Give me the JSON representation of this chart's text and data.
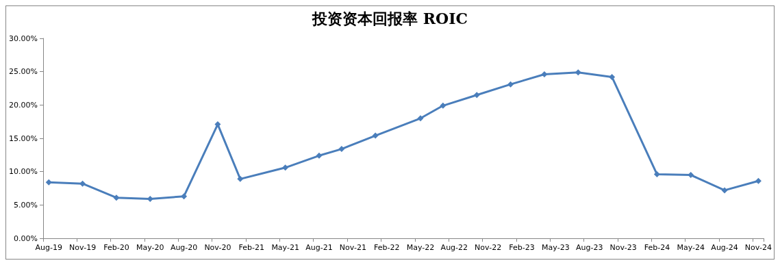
{
  "chart_data": {
    "type": "line",
    "title": "投资资本回报率 ROIC",
    "categories": [
      "Aug-19",
      null,
      null,
      "Nov-19",
      null,
      null,
      "Feb-20",
      null,
      null,
      "May-20",
      null,
      null,
      "Aug-20",
      null,
      null,
      "Nov-20",
      null,
      null,
      "Feb-21",
      null,
      null,
      "May-21",
      null,
      null,
      "Aug-21",
      null,
      null,
      "Nov-21",
      null,
      null,
      "Feb-22",
      null,
      null,
      "May-22",
      null,
      null,
      "Aug-22",
      null,
      null,
      "Nov-22",
      null,
      null,
      "Feb-23",
      null,
      null,
      "May-23",
      null,
      null,
      "Aug-23",
      null,
      null,
      "Nov-23",
      null,
      null,
      "Feb-24",
      null,
      null,
      "May-24",
      null,
      null,
      "Aug-24",
      null,
      null,
      "Nov-24"
    ],
    "series": [
      {
        "color": "#4a7ebb",
        "values": [
          8.4,
          null,
          null,
          8.2,
          null,
          null,
          6.1,
          null,
          null,
          5.9,
          null,
          null,
          6.3,
          null,
          null,
          17.1,
          null,
          8.9,
          null,
          null,
          null,
          10.6,
          null,
          null,
          12.4,
          null,
          13.4,
          null,
          null,
          15.4,
          null,
          null,
          null,
          18.0,
          null,
          19.9,
          null,
          null,
          21.5,
          null,
          null,
          23.1,
          null,
          null,
          24.6,
          null,
          null,
          24.9,
          null,
          null,
          24.2,
          null,
          null,
          null,
          9.6,
          null,
          null,
          9.5,
          null,
          null,
          7.2,
          null,
          null,
          8.6
        ]
      }
    ],
    "ylim": [
      0,
      30
    ],
    "yticks": [
      {
        "value": 0,
        "label": "0.00%"
      },
      {
        "value": 5,
        "label": "5.00%"
      },
      {
        "value": 10,
        "label": "10.00%"
      },
      {
        "value": 15,
        "label": "15.00%"
      },
      {
        "value": 20,
        "label": "20.00%"
      },
      {
        "value": 25,
        "label": "25.00%"
      },
      {
        "value": 30,
        "label": "30.00%"
      }
    ],
    "grid": false,
    "marker": "diamond",
    "line_style": "solid"
  }
}
